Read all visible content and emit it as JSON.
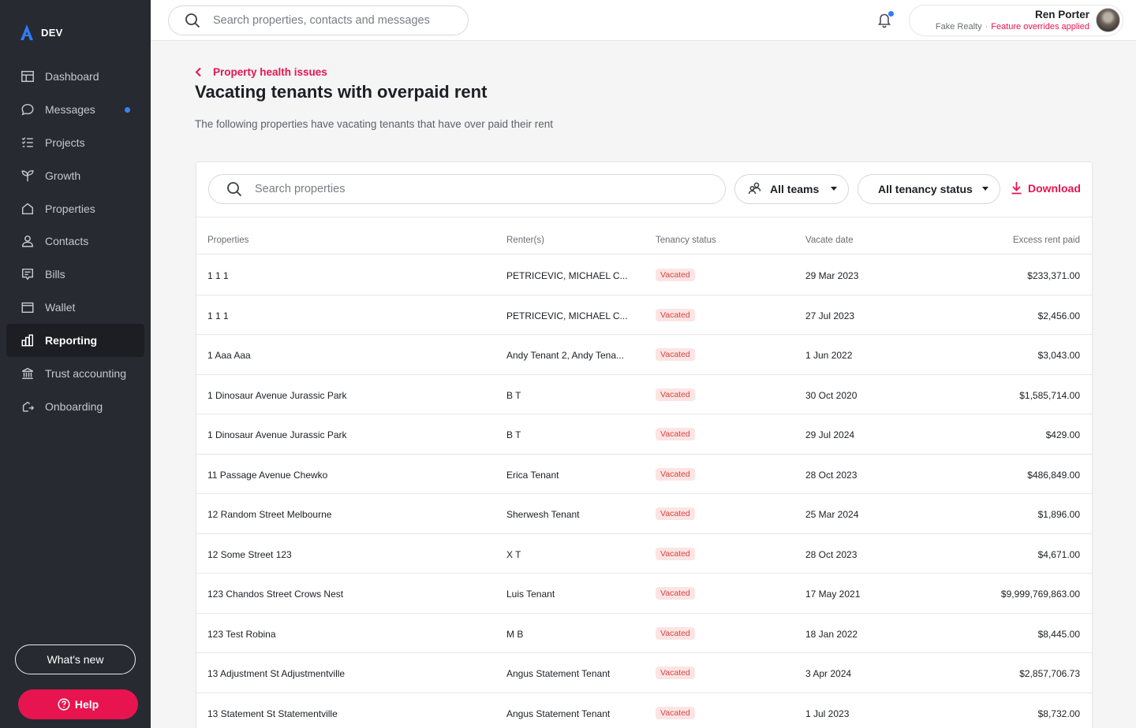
{
  "app": {
    "env_label": "DEV",
    "logo": "a-logo-icon"
  },
  "sidebar": {
    "items": [
      {
        "label": "Dashboard",
        "icon": "dashboard-icon"
      },
      {
        "label": "Messages",
        "icon": "chat-icon",
        "unread": true
      },
      {
        "label": "Projects",
        "icon": "checklist-icon"
      },
      {
        "label": "Growth",
        "icon": "sprout-icon"
      },
      {
        "label": "Properties",
        "icon": "house-icon"
      },
      {
        "label": "Contacts",
        "icon": "person-icon"
      },
      {
        "label": "Bills",
        "icon": "bill-icon"
      },
      {
        "label": "Wallet",
        "icon": "wallet-icon"
      },
      {
        "label": "Reporting",
        "icon": "bar-chart-icon",
        "active": true
      },
      {
        "label": "Trust accounting",
        "icon": "bank-icon"
      },
      {
        "label": "Onboarding",
        "icon": "onboarding-icon"
      }
    ],
    "whats_new": "What's new",
    "help": "Help"
  },
  "topbar": {
    "search_placeholder": "Search properties, contacts and messages",
    "user_name": "Ren Porter",
    "company": "Fake Realty",
    "flag": "Feature overrides applied"
  },
  "page": {
    "breadcrumb": "Property health issues",
    "title": "Vacating tenants with overpaid rent",
    "description": "The following properties have vacating tenants that have over paid their rent"
  },
  "filters": {
    "search_placeholder": "Search properties",
    "teams": "All teams",
    "status": "All tenancy status",
    "download": "Download"
  },
  "table": {
    "columns": [
      "Properties",
      "Renter(s)",
      "Tenancy status",
      "Vacate date",
      "Excess rent paid"
    ],
    "rows": [
      [
        "1 1 1",
        "PETRICEVIC, MICHAEL C...",
        "Vacated",
        "29 Mar 2023",
        "$233,371.00"
      ],
      [
        "1 1 1",
        "PETRICEVIC, MICHAEL C...",
        "Vacated",
        "27 Jul 2023",
        "$2,456.00"
      ],
      [
        "1 Aaa Aaa",
        "Andy Tenant 2, Andy Tena...",
        "Vacated",
        "1 Jun 2022",
        "$3,043.00"
      ],
      [
        "1 Dinosaur Avenue Jurassic Park",
        "B T",
        "Vacated",
        "30 Oct 2020",
        "$1,585,714.00"
      ],
      [
        "1 Dinosaur Avenue Jurassic Park",
        "B T",
        "Vacated",
        "29 Jul 2024",
        "$429.00"
      ],
      [
        "11 Passage Avenue Chewko",
        "Erica Tenant",
        "Vacated",
        "28 Oct 2023",
        "$486,849.00"
      ],
      [
        "12 Random Street Melbourne",
        "Sherwesh Tenant",
        "Vacated",
        "25 Mar 2024",
        "$1,896.00"
      ],
      [
        "12 Some Street 123",
        "X T",
        "Vacated",
        "28 Oct 2023",
        "$4,671.00"
      ],
      [
        "123 Chandos Street Crows Nest",
        "Luis Tenant",
        "Vacated",
        "17 May 2021",
        "$9,999,769,863.00"
      ],
      [
        "123 Test Robina",
        "M B",
        "Vacated",
        "18 Jan 2022",
        "$8,445.00"
      ],
      [
        "13 Adjustment St Adjustmentville",
        "Angus Statement Tenant",
        "Vacated",
        "3 Apr 2024",
        "$2,857,706.73"
      ],
      [
        "13 Statement St Statementville",
        "Angus Statement Tenant",
        "Vacated",
        "1 Jul 2023",
        "$8,732.00"
      ]
    ]
  }
}
